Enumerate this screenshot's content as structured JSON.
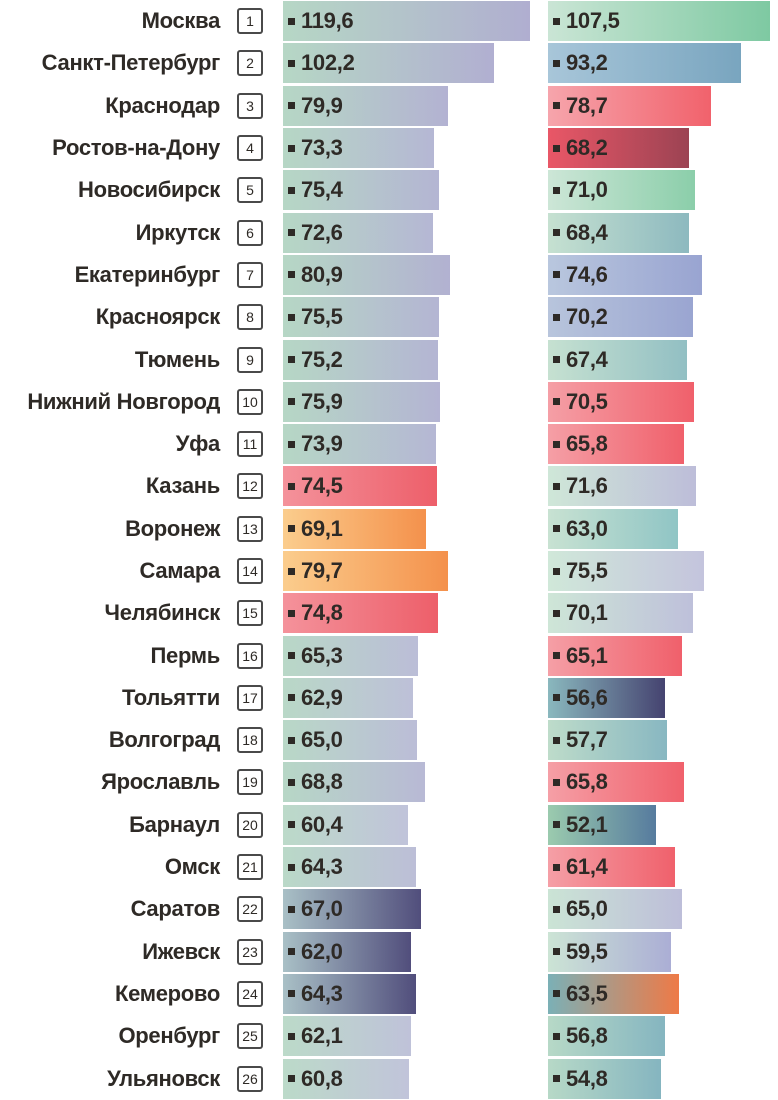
{
  "colors": {
    "background": "#ffffff",
    "text": "#2e2a26",
    "marker": "#2e2a26",
    "rank_box_border": "#4a4a4a"
  },
  "chart_data": {
    "type": "bar",
    "orientation": "horizontal",
    "decimal_separator": ",",
    "legend": "none",
    "grid": false,
    "categories": [
      "Москва",
      "Санкт-Петербург",
      "Краснодар",
      "Ростов-на-Дону",
      "Новосибирск",
      "Иркутск",
      "Екатеринбург",
      "Красноярск",
      "Тюмень",
      "Нижний Новгород",
      "Уфа",
      "Казань",
      "Воронеж",
      "Самара",
      "Челябинск",
      "Пермь",
      "Тольятти",
      "Волгоград",
      "Ярославль",
      "Барнаул",
      "Омск",
      "Саратов",
      "Ижевск",
      "Кемерово",
      "Оренбург",
      "Ульяновск"
    ],
    "ranks": [
      1,
      2,
      3,
      4,
      5,
      6,
      7,
      8,
      9,
      10,
      11,
      12,
      13,
      14,
      15,
      16,
      17,
      18,
      19,
      20,
      21,
      22,
      23,
      24,
      25,
      26
    ],
    "series": [
      {
        "name": "column-1",
        "values": [
          119.6,
          102.2,
          79.9,
          73.3,
          75.4,
          72.6,
          80.9,
          75.5,
          75.2,
          75.9,
          73.9,
          74.5,
          69.1,
          79.7,
          74.8,
          65.3,
          62.9,
          65.0,
          68.8,
          60.4,
          64.3,
          67.0,
          62.0,
          64.3,
          62.1,
          60.8
        ],
        "labels": [
          "119,6",
          "102,2",
          "79,9",
          "73,3",
          "75,4",
          "72,6",
          "80,9",
          "75,5",
          "75,2",
          "75,9",
          "73,9",
          "74,5",
          "69,1",
          "79,7",
          "74,8",
          "65,3",
          "62,9",
          "65,0",
          "68,8",
          "60,4",
          "64,3",
          "67,0",
          "62,0",
          "64,3",
          "62,1",
          "60,8"
        ],
        "gradients": [
          [
            "#b6d7c5",
            "#b0aed0"
          ],
          [
            "#b6d7c5",
            "#b1afd1"
          ],
          [
            "#b6d7c5",
            "#b3b2d2"
          ],
          [
            "#b6d7c5",
            "#b5b7d4"
          ],
          [
            "#b6d7c5",
            "#b4b5d3"
          ],
          [
            "#b6d7c5",
            "#b5b7d4"
          ],
          [
            "#b6d7c5",
            "#b2b1d1"
          ],
          [
            "#b6d7c5",
            "#b4b5d3"
          ],
          [
            "#b6d7c5",
            "#b4b5d3"
          ],
          [
            "#b6d7c5",
            "#b4b4d3"
          ],
          [
            "#b6d7c5",
            "#b5b7d4"
          ],
          [
            "#f4929b",
            "#ed5f6a"
          ],
          [
            "#fbcd8d",
            "#f4914c"
          ],
          [
            "#fbcd8d",
            "#f4914c"
          ],
          [
            "#f4929b",
            "#ed5f6a"
          ],
          [
            "#b9d8c7",
            "#bbbdd7"
          ],
          [
            "#b9d8c7",
            "#bdc0d8"
          ],
          [
            "#b9d8c7",
            "#bbbdd7"
          ],
          [
            "#b7d7c6",
            "#b8b9d5"
          ],
          [
            "#bcdac9",
            "#c0c3da"
          ],
          [
            "#bad9c8",
            "#bcbed7"
          ],
          [
            "#a9c0c6",
            "#514e7c"
          ],
          [
            "#a9c0c6",
            "#514e7c"
          ],
          [
            "#a9c0c6",
            "#514e7c"
          ],
          [
            "#bcdac9",
            "#bfc2d9"
          ],
          [
            "#bcdac9",
            "#c1c4da"
          ]
        ]
      },
      {
        "name": "column-2",
        "values": [
          107.5,
          93.2,
          78.7,
          68.2,
          71.0,
          68.4,
          74.6,
          70.2,
          67.4,
          70.5,
          65.8,
          71.6,
          63.0,
          75.5,
          70.1,
          65.1,
          56.6,
          57.7,
          65.8,
          52.1,
          61.4,
          65.0,
          59.5,
          63.5,
          56.8,
          54.8
        ],
        "labels": [
          "107,5",
          "93,2",
          "78,7",
          "68,2",
          "71,0",
          "68,4",
          "74,6",
          "70,2",
          "67,4",
          "70,5",
          "65,8",
          "71,6",
          "63,0",
          "75,5",
          "70,1",
          "65,1",
          "56,6",
          "57,7",
          "65,8",
          "52,1",
          "61,4",
          "65,0",
          "59,5",
          "63,5",
          "56,8",
          "54,8"
        ],
        "gradients": [
          [
            "#cae5d5",
            "#7ec9a2"
          ],
          [
            "#a8c6d9",
            "#79a5bf"
          ],
          [
            "#f6a5ac",
            "#f1626c"
          ],
          [
            "#e95767",
            "#9c4353"
          ],
          [
            "#cde6d7",
            "#8bceaa"
          ],
          [
            "#c6e1d1",
            "#8db9bf"
          ],
          [
            "#b9c7de",
            "#99a4d1"
          ],
          [
            "#b8c5dc",
            "#9aa5d1"
          ],
          [
            "#c6e1d1",
            "#92bfc3"
          ],
          [
            "#f59fa6",
            "#f0606b"
          ],
          [
            "#f59fa6",
            "#f0606b"
          ],
          [
            "#cfe7d8",
            "#bdbdd9"
          ],
          [
            "#c8e2d2",
            "#90c5c5"
          ],
          [
            "#d0e8d9",
            "#c4c4dd"
          ],
          [
            "#cee6d7",
            "#bec0da"
          ],
          [
            "#f59fa6",
            "#f0606b"
          ],
          [
            "#8ab8be",
            "#454370"
          ],
          [
            "#bedcca",
            "#88b7c1"
          ],
          [
            "#f59fa6",
            "#f0616c"
          ],
          [
            "#9bcbae",
            "#567b9e"
          ],
          [
            "#f59fa6",
            "#f0616c"
          ],
          [
            "#cbe4d5",
            "#bdbed9"
          ],
          [
            "#cce4d5",
            "#abaed5"
          ],
          [
            "#7bb0b6",
            "#ee7a47"
          ],
          [
            "#b7d9c7",
            "#85b5c0"
          ],
          [
            "#b7d9c7",
            "#85b5c0"
          ]
        ]
      }
    ]
  }
}
